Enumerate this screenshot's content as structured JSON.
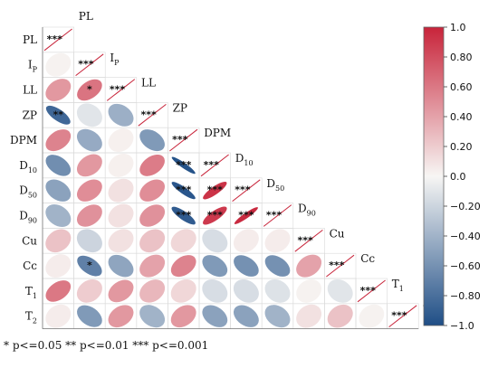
{
  "chart_data": {
    "type": "heatmap",
    "title": "",
    "variables": [
      {
        "base": "PL",
        "sub": ""
      },
      {
        "base": "I",
        "sub": "P"
      },
      {
        "base": "LL",
        "sub": ""
      },
      {
        "base": "ZP",
        "sub": ""
      },
      {
        "base": "DPM",
        "sub": ""
      },
      {
        "base": "D",
        "sub": "10"
      },
      {
        "base": "D",
        "sub": "50"
      },
      {
        "base": "D",
        "sub": "90"
      },
      {
        "base": "Cu",
        "sub": ""
      },
      {
        "base": "Cc",
        "sub": ""
      },
      {
        "base": "T",
        "sub": "1"
      },
      {
        "base": "T",
        "sub": "2"
      }
    ],
    "lower_triangle_correlations": [
      [],
      [
        0.02
      ],
      [
        0.45,
        0.62
      ],
      [
        -0.85,
        -0.1,
        -0.42
      ],
      [
        0.55,
        -0.45,
        0.03,
        -0.55
      ],
      [
        -0.62,
        0.45,
        0.03,
        0.58,
        -0.97
      ],
      [
        -0.5,
        0.5,
        0.1,
        0.5,
        -0.95,
        0.93
      ],
      [
        -0.4,
        0.48,
        0.1,
        0.48,
        -0.92,
        0.9,
        0.97
      ],
      [
        0.25,
        -0.2,
        0.1,
        0.25,
        0.15,
        -0.15,
        0.05,
        0.05
      ],
      [
        0.05,
        -0.7,
        -0.48,
        0.4,
        0.55,
        -0.55,
        -0.6,
        -0.6,
        0.4
      ],
      [
        0.6,
        0.2,
        0.45,
        0.3,
        0.15,
        -0.15,
        -0.15,
        -0.12,
        0.02,
        -0.1
      ],
      [
        0.05,
        -0.55,
        0.45,
        -0.4,
        0.45,
        -0.5,
        -0.5,
        -0.4,
        0.1,
        0.25,
        0.02
      ]
    ],
    "significance_labels": [
      [],
      [
        ""
      ],
      [
        "",
        "*"
      ],
      [
        "**",
        "",
        ""
      ],
      [
        "",
        "",
        "",
        ""
      ],
      [
        "",
        "",
        "",
        "",
        "***"
      ],
      [
        "",
        "",
        "",
        "",
        "***",
        "***"
      ],
      [
        "",
        "",
        "",
        "",
        "***",
        "***",
        "***"
      ],
      [
        "",
        "",
        "",
        "",
        "",
        "",
        "",
        ""
      ],
      [
        "",
        "*",
        "",
        "",
        "",
        "",
        "",
        "",
        ""
      ],
      [
        "",
        "",
        "",
        "",
        "",
        "",
        "",
        "",
        "",
        ""
      ],
      [
        "",
        "",
        "",
        "",
        "",
        "",
        "",
        "",
        "",
        "",
        ""
      ]
    ],
    "diagonal_label": "***",
    "colorbar": {
      "range": [
        -1.0,
        1.0
      ],
      "ticks": [
        "1.0",
        "0.80",
        "0.60",
        "0.40",
        "0.20",
        "0.0",
        "−0.20",
        "−0.40",
        "−0.60",
        "−0.80",
        "−1.0"
      ],
      "colors": {
        "negative": "#1f4e86",
        "neutral": "#f7f6f4",
        "positive": "#c8243a"
      }
    },
    "footnote": "* p<=0.05  ** p<=0.01  *** p<=0.001"
  }
}
